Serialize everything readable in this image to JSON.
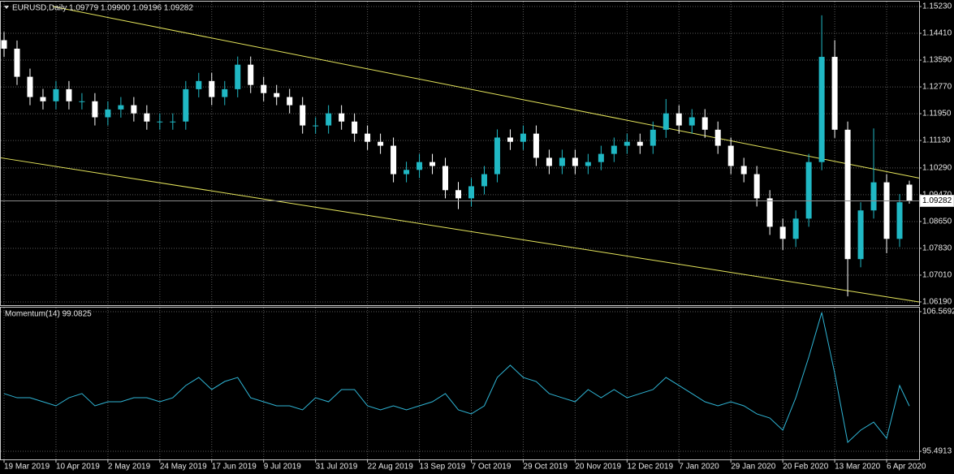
{
  "chart_data": [
    {
      "type": "candlestick",
      "title": "EURUSD,Daily 1.09779 1.09900 1.09196 1.09282",
      "x": [
        0,
        4,
        8,
        12,
        16,
        20,
        24,
        28,
        32,
        36,
        40,
        44,
        48,
        52,
        56,
        60,
        64,
        68,
        72,
        76,
        80,
        84,
        88,
        92,
        96,
        100,
        104,
        108,
        112,
        116,
        120,
        124,
        128,
        132,
        136,
        140,
        144,
        148,
        152,
        156,
        160,
        164,
        168,
        172,
        176,
        180,
        184,
        188,
        192,
        196,
        200,
        204,
        208,
        212,
        216,
        220,
        224,
        228,
        232,
        236,
        240,
        244,
        248,
        252,
        256,
        260,
        264,
        268,
        272,
        276,
        279
      ],
      "open": [
        1.142,
        1.1394,
        1.1308,
        1.1246,
        1.1233,
        1.127,
        1.1233,
        1.1233,
        1.1184,
        1.1208,
        1.1221,
        1.1196,
        1.1171,
        1.1171,
        1.1171,
        1.127,
        1.1295,
        1.1246,
        1.127,
        1.1345,
        1.1283,
        1.1258,
        1.1246,
        1.1221,
        1.1159,
        1.1159,
        1.1196,
        1.1171,
        1.1134,
        1.1109,
        1.1097,
        1.101,
        1.1023,
        1.1047,
        1.1035,
        1.0961,
        1.0936,
        1.0973,
        1.101,
        1.1122,
        1.1109,
        1.1134,
        1.106,
        1.1035,
        1.106,
        1.1035,
        1.1047,
        1.1072,
        1.1097,
        1.1109,
        1.1097,
        1.1146,
        1.1196,
        1.1159,
        1.1184,
        1.1146,
        1.1097,
        1.1035,
        1.101,
        1.0936,
        1.0849,
        1.0812,
        1.0874,
        1.1047,
        1.1369,
        1.1146,
        1.075,
        1.0899,
        1.0985,
        1.0812,
        1.09779
      ],
      "high": [
        1.1445,
        1.1419,
        1.1333,
        1.1271,
        1.1295,
        1.1295,
        1.1258,
        1.1258,
        1.1233,
        1.1246,
        1.1246,
        1.1221,
        1.1196,
        1.1196,
        1.1295,
        1.132,
        1.132,
        1.1295,
        1.137,
        1.137,
        1.1308,
        1.1283,
        1.1271,
        1.1246,
        1.1184,
        1.1221,
        1.1221,
        1.1196,
        1.1159,
        1.1134,
        1.1122,
        1.1048,
        1.1072,
        1.1072,
        1.106,
        1.0986,
        1.0998,
        1.1035,
        1.1147,
        1.1147,
        1.1159,
        1.1159,
        1.1085,
        1.1085,
        1.1085,
        1.1072,
        1.1097,
        1.1122,
        1.1134,
        1.1134,
        1.1171,
        1.124,
        1.1221,
        1.1209,
        1.1209,
        1.1171,
        1.1122,
        1.106,
        1.1035,
        1.0961,
        1.0874,
        1.0899,
        1.1072,
        1.1496,
        1.142,
        1.1171,
        1.0924,
        1.115,
        1.101,
        1.0949,
        1.099
      ],
      "low": [
        1.1369,
        1.1283,
        1.1221,
        1.1208,
        1.1208,
        1.1208,
        1.1208,
        1.1159,
        1.1159,
        1.1183,
        1.1171,
        1.1146,
        1.1146,
        1.1146,
        1.1146,
        1.1245,
        1.1221,
        1.1221,
        1.1245,
        1.1258,
        1.1233,
        1.1221,
        1.1196,
        1.1134,
        1.1134,
        1.1134,
        1.1146,
        1.1109,
        1.1084,
        1.1072,
        1.0985,
        1.0985,
        1.0998,
        1.101,
        1.0936,
        1.0903,
        1.0911,
        1.0948,
        1.0985,
        1.1084,
        1.1084,
        1.1035,
        1.101,
        1.101,
        1.101,
        1.101,
        1.1022,
        1.1047,
        1.1072,
        1.1072,
        1.1072,
        1.1121,
        1.1134,
        1.1134,
        1.1121,
        1.1072,
        1.101,
        1.0985,
        1.0911,
        1.0824,
        1.0778,
        1.0787,
        1.0849,
        1.1022,
        1.1121,
        1.0636,
        1.0725,
        1.0874,
        1.0768,
        1.0787,
        1.09196
      ],
      "close": [
        1.1394,
        1.1308,
        1.1246,
        1.1233,
        1.127,
        1.1233,
        1.1233,
        1.1184,
        1.1208,
        1.1221,
        1.1196,
        1.1171,
        1.1171,
        1.1171,
        1.127,
        1.1295,
        1.1246,
        1.127,
        1.1345,
        1.1283,
        1.1258,
        1.1246,
        1.1221,
        1.1159,
        1.1159,
        1.1196,
        1.1171,
        1.1134,
        1.1109,
        1.1097,
        1.101,
        1.1023,
        1.1047,
        1.1035,
        1.0961,
        1.0936,
        1.0973,
        1.101,
        1.1122,
        1.1109,
        1.1134,
        1.106,
        1.1035,
        1.106,
        1.1035,
        1.1047,
        1.1072,
        1.1097,
        1.1109,
        1.1097,
        1.1146,
        1.1196,
        1.1159,
        1.1184,
        1.1146,
        1.1097,
        1.1035,
        1.101,
        1.0936,
        1.0849,
        1.0812,
        1.0874,
        1.1047,
        1.1369,
        1.1146,
        1.075,
        1.0899,
        1.0985,
        1.0812,
        1.0924,
        1.09282
      ],
      "up_color": "#20b8c4",
      "down_color": "#ffffff",
      "last_price": 1.09282,
      "trendlines": [
        {
          "x": [
            15,
            282
          ],
          "y": [
            1.1523,
            1.0998
          ],
          "color": "#e6e65c"
        },
        {
          "x": [
            -1,
            282
          ],
          "y": [
            1.106,
            1.0619
          ],
          "color": "#e6e65c"
        }
      ],
      "xlim": [
        -1,
        282
      ],
      "xticks": [
        {
          "value": 0,
          "label": "19 Mar 2019"
        },
        {
          "value": 16,
          "label": "10 Apr 2019"
        },
        {
          "value": 32,
          "label": "2 May 2019"
        },
        {
          "value": 48,
          "label": "24 May 2019"
        },
        {
          "value": 64,
          "label": "17 Jun 2019"
        },
        {
          "value": 80,
          "label": "9 Jul 2019"
        },
        {
          "value": 96,
          "label": "31 Jul 2019"
        },
        {
          "value": 112,
          "label": "22 Aug 2019"
        },
        {
          "value": 128,
          "label": "13 Sep 2019"
        },
        {
          "value": 144,
          "label": "7 Oct 2019"
        },
        {
          "value": 160,
          "label": "29 Oct 2019"
        },
        {
          "value": 176,
          "label": "20 Nov 2019"
        },
        {
          "value": 192,
          "label": "12 Dec 2019"
        },
        {
          "value": 208,
          "label": "7 Jan 2020"
        },
        {
          "value": 224,
          "label": "29 Jan 2020"
        },
        {
          "value": 240,
          "label": "20 Feb 2020"
        },
        {
          "value": 256,
          "label": "13 Mar 2020"
        },
        {
          "value": 272,
          "label": "6 Apr 2020"
        }
      ],
      "ylim": [
        1.0609,
        1.1538
      ],
      "yticks": [
        {
          "value": 1.1523,
          "label": "1.15230"
        },
        {
          "value": 1.1441,
          "label": "1.14410"
        },
        {
          "value": 1.1359,
          "label": "1.13590"
        },
        {
          "value": 1.1277,
          "label": "1.12770"
        },
        {
          "value": 1.1195,
          "label": "1.11950"
        },
        {
          "value": 1.1113,
          "label": "1.11130"
        },
        {
          "value": 1.1029,
          "label": "1.10290"
        },
        {
          "value": 1.0947,
          "label": "1.09470"
        },
        {
          "value": 1.0865,
          "label": "1.08650"
        },
        {
          "value": 1.0783,
          "label": "1.07830"
        },
        {
          "value": 1.0701,
          "label": "1.07010"
        },
        {
          "value": 1.0619,
          "label": "1.06190"
        }
      ],
      "grid": true
    },
    {
      "type": "line",
      "title": "Momentum(14) 99.0825",
      "color": "#2fb5d5",
      "x": [
        0,
        4,
        8,
        12,
        16,
        20,
        24,
        28,
        32,
        36,
        40,
        44,
        48,
        52,
        56,
        60,
        64,
        68,
        72,
        76,
        80,
        84,
        88,
        92,
        96,
        100,
        104,
        108,
        112,
        116,
        120,
        124,
        128,
        132,
        136,
        140,
        144,
        148,
        152,
        156,
        160,
        164,
        168,
        172,
        176,
        180,
        184,
        188,
        192,
        196,
        200,
        204,
        208,
        212,
        216,
        220,
        224,
        228,
        232,
        236,
        240,
        244,
        248,
        252,
        256,
        260,
        264,
        268,
        272,
        276,
        279
      ],
      "values": [
        100.07,
        99.74,
        99.74,
        99.42,
        99.1,
        99.74,
        100.07,
        99.1,
        99.42,
        99.42,
        99.74,
        99.74,
        99.42,
        99.74,
        100.71,
        101.35,
        100.39,
        101.03,
        101.35,
        99.74,
        99.42,
        99.1,
        99.1,
        98.78,
        99.74,
        99.42,
        100.39,
        100.39,
        99.1,
        98.78,
        99.1,
        98.78,
        99.1,
        99.42,
        100.07,
        98.78,
        98.46,
        99.1,
        101.35,
        102.32,
        101.35,
        101.03,
        100.07,
        99.74,
        99.42,
        100.39,
        99.74,
        100.39,
        99.74,
        100.07,
        100.39,
        101.35,
        100.71,
        100.07,
        99.42,
        99.1,
        99.42,
        99.1,
        98.46,
        98.13,
        97.17,
        99.74,
        102.96,
        106.5,
        101.68,
        96.2,
        97.17,
        97.81,
        96.52,
        100.71,
        99.0825
      ],
      "xlim": [
        -1,
        282
      ],
      "ylim": [
        94.85,
        106.89
      ],
      "yticks": [
        106.5692,
        95.4913
      ],
      "grid": true
    }
  ]
}
